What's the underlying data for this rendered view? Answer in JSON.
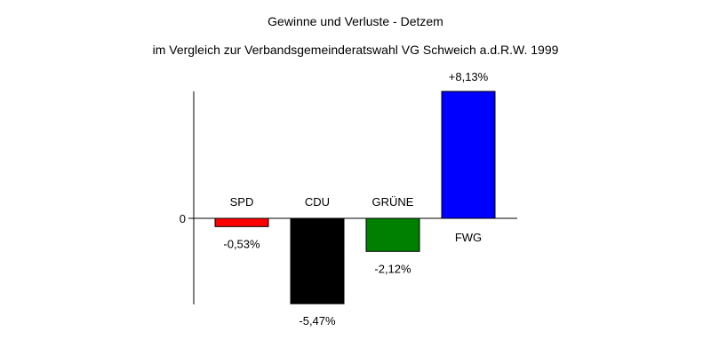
{
  "chart_data": {
    "type": "bar",
    "title": "Gewinne und Verluste - Detzem",
    "subtitle": "im Vergleich zur Verbandsgemeinderatswahl VG Schweich a.d.R.W. 1999",
    "categories": [
      "SPD",
      "CDU",
      "GRÜNE",
      "FWG"
    ],
    "values": [
      -0.53,
      -5.47,
      -2.12,
      8.13
    ],
    "data_labels": [
      "-0,53%",
      "-5,47%",
      "-2,12%",
      "+8,13%"
    ],
    "colors": [
      "#ff0000",
      "#000000",
      "#008000",
      "#0000ff"
    ],
    "y_ticks": [
      "0"
    ],
    "ylim": [
      -5.5,
      8.13
    ],
    "grid": false,
    "xlabel": "",
    "ylabel": ""
  }
}
